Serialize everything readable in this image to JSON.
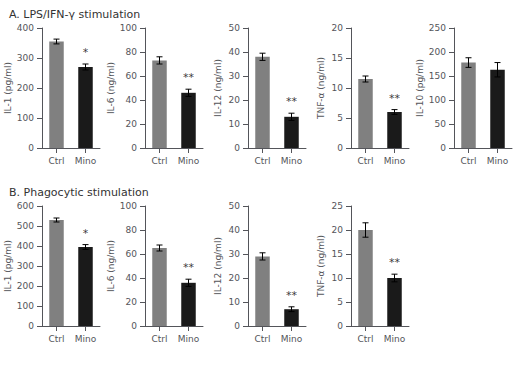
{
  "chart_data": [
    {
      "type": "bar",
      "title": "A. LPS/IFN-γ stimulation",
      "ylabel": "IL-1 (pg/ml)",
      "categories": [
        "Ctrl",
        "Mino"
      ],
      "values": [
        355,
        270
      ],
      "errors": [
        8,
        10
      ],
      "colors": [
        "#808080",
        "#1a1a1a"
      ],
      "ylim": [
        0,
        400
      ],
      "yticks": [
        0,
        100,
        200,
        300,
        400
      ],
      "grid": false,
      "annotations": [
        {
          "text": "*",
          "category": "Mino"
        }
      ]
    },
    {
      "type": "bar",
      "ylabel": "IL-6 (ng/ml)",
      "categories": [
        "Ctrl",
        "Mino"
      ],
      "values": [
        73,
        46
      ],
      "errors": [
        3,
        3
      ],
      "colors": [
        "#808080",
        "#1a1a1a"
      ],
      "ylim": [
        0,
        100
      ],
      "yticks": [
        0,
        20,
        40,
        60,
        80,
        100
      ],
      "grid": false,
      "annotations": [
        {
          "text": "**",
          "category": "Mino"
        }
      ]
    },
    {
      "type": "bar",
      "ylabel": "IL-12 (ng/ml)",
      "categories": [
        "Ctrl",
        "Mino"
      ],
      "values": [
        38,
        13
      ],
      "errors": [
        1.5,
        1.5
      ],
      "colors": [
        "#808080",
        "#1a1a1a"
      ],
      "ylim": [
        0,
        50
      ],
      "yticks": [
        0,
        10,
        20,
        30,
        40,
        50
      ],
      "grid": false,
      "annotations": [
        {
          "text": "**",
          "category": "Mino"
        }
      ]
    },
    {
      "type": "bar",
      "ylabel": "TNF-α (ng/ml)",
      "categories": [
        "Ctrl",
        "Mino"
      ],
      "values": [
        11.5,
        6
      ],
      "errors": [
        0.5,
        0.4
      ],
      "colors": [
        "#808080",
        "#1a1a1a"
      ],
      "ylim": [
        0,
        20
      ],
      "yticks": [
        0,
        5,
        10,
        15,
        20
      ],
      "grid": false,
      "annotations": [
        {
          "text": "**",
          "category": "Mino"
        }
      ]
    },
    {
      "type": "bar",
      "ylabel": "IL-10 (pg/ml)",
      "categories": [
        "Ctrl",
        "Mino"
      ],
      "values": [
        178,
        163
      ],
      "errors": [
        10,
        15
      ],
      "colors": [
        "#808080",
        "#1a1a1a"
      ],
      "ylim": [
        0,
        250
      ],
      "yticks": [
        0,
        50,
        100,
        150,
        200,
        250
      ],
      "grid": false
    },
    {
      "type": "bar",
      "title": "B. Phagocytic stimulation",
      "ylabel": "IL-1 (pg/ml)",
      "categories": [
        "Ctrl",
        "Mino"
      ],
      "values": [
        530,
        395
      ],
      "errors": [
        10,
        12
      ],
      "colors": [
        "#808080",
        "#1a1a1a"
      ],
      "ylim": [
        0,
        600
      ],
      "yticks": [
        0,
        100,
        200,
        300,
        400,
        500,
        600
      ],
      "grid": false,
      "annotations": [
        {
          "text": "*",
          "category": "Mino"
        }
      ]
    },
    {
      "type": "bar",
      "ylabel": "IL-6 (ng/ml)",
      "categories": [
        "Ctrl",
        "Mino"
      ],
      "values": [
        65,
        36
      ],
      "errors": [
        2.5,
        3
      ],
      "colors": [
        "#808080",
        "#1a1a1a"
      ],
      "ylim": [
        0,
        100
      ],
      "yticks": [
        0,
        20,
        40,
        60,
        80,
        100
      ],
      "grid": false,
      "annotations": [
        {
          "text": "**",
          "category": "Mino"
        }
      ]
    },
    {
      "type": "bar",
      "ylabel": "IL-12 (ng/ml)",
      "categories": [
        "Ctrl",
        "Mino"
      ],
      "values": [
        29,
        7
      ],
      "errors": [
        1.5,
        1
      ],
      "colors": [
        "#808080",
        "#1a1a1a"
      ],
      "ylim": [
        0,
        50
      ],
      "yticks": [
        0,
        10,
        20,
        30,
        40,
        50
      ],
      "grid": false,
      "annotations": [
        {
          "text": "**",
          "category": "Mino"
        }
      ]
    },
    {
      "type": "bar",
      "ylabel": "TNF-α (ng/ml)",
      "categories": [
        "Ctrl",
        "Mino"
      ],
      "values": [
        20,
        10
      ],
      "errors": [
        1.5,
        0.8
      ],
      "colors": [
        "#808080",
        "#1a1a1a"
      ],
      "ylim": [
        0,
        25
      ],
      "yticks": [
        0,
        5,
        10,
        15,
        20,
        25
      ],
      "grid": false,
      "annotations": [
        {
          "text": "**",
          "category": "Mino"
        }
      ]
    }
  ]
}
